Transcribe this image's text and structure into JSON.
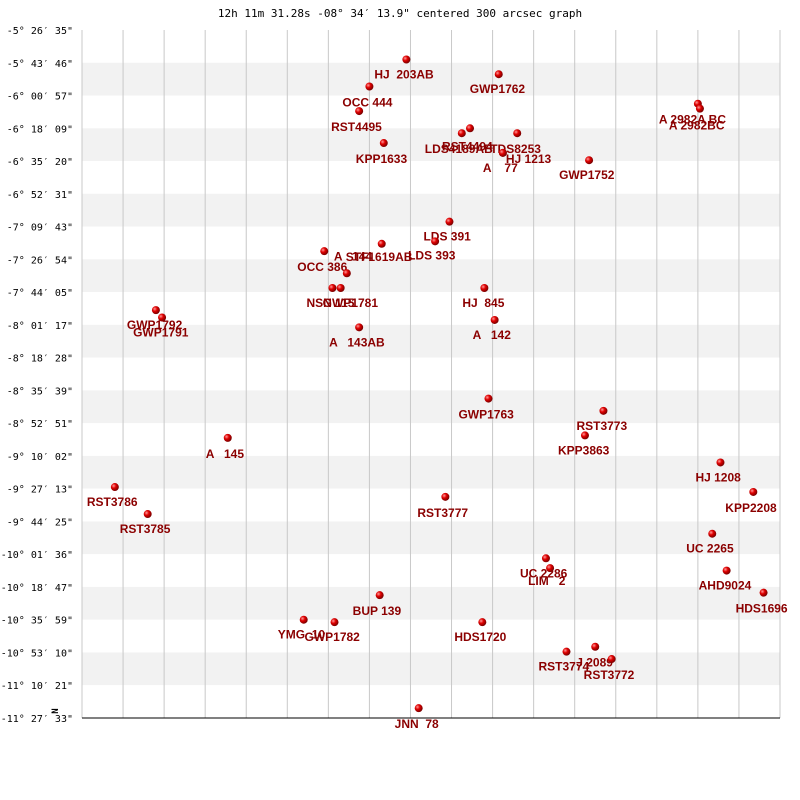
{
  "chart_data": {
    "type": "scatter",
    "title": "12h 11m 31.28s -08° 34′ 13.9\" centered 300 arcsec graph",
    "north_marker": "N",
    "xlim": [
      -17,
      17
    ],
    "ylim": [
      -28,
      0
    ],
    "y_ticks": [
      "-5° 26′ 35\"",
      "-5° 43′ 46\"",
      "-6° 00′ 57\"",
      "-6° 18′ 09\"",
      "-6° 35′ 20\"",
      "-6° 52′ 31\"",
      "-7° 09′ 43\"",
      "-7° 26′ 54\"",
      "-7° 44′ 05\"",
      "-8° 01′ 17\"",
      "-8° 18′ 28\"",
      "-8° 35′ 39\"",
      "-8° 52′ 51\"",
      "-9° 10′ 02\"",
      "-9° 27′ 13\"",
      "-9° 44′ 25\"",
      "-10° 01′ 36\"",
      "-10° 18′ 47\"",
      "-10° 35′ 59\"",
      "-10° 53′ 10\"",
      "-11° 10′ 21\"",
      "-11° 27′ 33\""
    ],
    "stars": [
      {
        "label": "HJ  203AB",
        "x": -1.2,
        "y": -1.2,
        "dx": -32,
        "dy": 19
      },
      {
        "label": "GWP1762",
        "x": 3.3,
        "y": -1.8,
        "dx": -29,
        "dy": 19
      },
      {
        "label": "OCC 444",
        "x": -3.0,
        "y": -2.3,
        "dx": -27,
        "dy": 20
      },
      {
        "label": "A 2982A BC",
        "x": 13.0,
        "y": -3.0,
        "dx": -39,
        "dy": 20
      },
      {
        "label": "A 2982BC",
        "x": 13.1,
        "y": -3.2,
        "dx": -31,
        "dy": 21
      },
      {
        "label": "RST4495",
        "x": -3.5,
        "y": -3.3,
        "dx": -28,
        "dy": 20
      },
      {
        "label": "RST4494",
        "x": 1.9,
        "y": -4.0,
        "dx": -28,
        "dy": 22
      },
      {
        "label": "LDS4189AB",
        "x": 1.5,
        "y": -4.2,
        "dx": -37,
        "dy": 20
      },
      {
        "label": "TDS8253",
        "x": 4.2,
        "y": -4.2,
        "dx": -27,
        "dy": 20
      },
      {
        "label": "KPP1633",
        "x": -2.3,
        "y": -4.6,
        "dx": -28,
        "dy": 20
      },
      {
        "label": "HJ 1213",
        "x": 3.5,
        "y": -5.0,
        "dx": 3,
        "dy": 10
      },
      {
        "label": "A    77",
        "x": 3.5,
        "y": -5.0,
        "dx": -20,
        "dy": 19
      },
      {
        "label": "GWP1752",
        "x": 7.7,
        "y": -5.3,
        "dx": -30,
        "dy": 19
      },
      {
        "label": "LDS 391",
        "x": 0.9,
        "y": -7.8,
        "dx": -26,
        "dy": 19
      },
      {
        "label": "OCC 386",
        "x": -5.2,
        "y": -9.0,
        "dx": -27,
        "dy": 20
      },
      {
        "label": "STF1619AB",
        "x": -2.4,
        "y": -8.7,
        "dx": -36,
        "dy": 17
      },
      {
        "label": "LDS 393",
        "x": 0.2,
        "y": -8.6,
        "dx": -27,
        "dy": 18
      },
      {
        "label": "A   144",
        "x": -4.1,
        "y": -9.9,
        "dx": -13,
        "dy": -13
      },
      {
        "label": "NSN 115",
        "x": -4.8,
        "y": -10.5,
        "dx": -26,
        "dy": 19
      },
      {
        "label": "GWP1781",
        "x": -4.4,
        "y": -10.5,
        "dx": -18,
        "dy": 19
      },
      {
        "label": "HJ  845",
        "x": 2.6,
        "y": -10.5,
        "dx": -22,
        "dy": 19
      },
      {
        "label": "GWP1792",
        "x": -13.4,
        "y": -11.4,
        "dx": -29,
        "dy": 19
      },
      {
        "label": "GWP1791",
        "x": -13.1,
        "y": -11.7,
        "dx": -29,
        "dy": 19
      },
      {
        "label": "A   142",
        "x": 3.1,
        "y": -11.8,
        "dx": -22,
        "dy": 19
      },
      {
        "label": "A   143AB",
        "x": -3.5,
        "y": -12.1,
        "dx": -30,
        "dy": 19
      },
      {
        "label": "GWP1763",
        "x": 2.8,
        "y": -15.0,
        "dx": -30,
        "dy": 20
      },
      {
        "label": "RST3773",
        "x": 8.4,
        "y": -15.5,
        "dx": -27,
        "dy": 19
      },
      {
        "label": "KPP3863",
        "x": 7.5,
        "y": -16.5,
        "dx": -27,
        "dy": 19
      },
      {
        "label": "A   145",
        "x": -9.9,
        "y": -16.6,
        "dx": -22,
        "dy": 20
      },
      {
        "label": "HJ 1208",
        "x": 14.1,
        "y": -17.6,
        "dx": -25,
        "dy": 19
      },
      {
        "label": "RST3786",
        "x": -15.4,
        "y": -18.6,
        "dx": -28,
        "dy": 19
      },
      {
        "label": "KPP2208",
        "x": 15.7,
        "y": -18.8,
        "dx": -28,
        "dy": 20
      },
      {
        "label": "RST3777",
        "x": 0.7,
        "y": -19.0,
        "dx": -28,
        "dy": 20
      },
      {
        "label": "RST3785",
        "x": -13.8,
        "y": -19.7,
        "dx": -28,
        "dy": 19
      },
      {
        "label": "UC 2265",
        "x": 13.7,
        "y": -20.5,
        "dx": -26,
        "dy": 19
      },
      {
        "label": "UC 2286",
        "x": 5.6,
        "y": -21.5,
        "dx": -26,
        "dy": 19
      },
      {
        "label": "LIM   2",
        "x": 5.8,
        "y": -21.9,
        "dx": -22,
        "dy": 17
      },
      {
        "label": "AHD9024",
        "x": 14.4,
        "y": -22.0,
        "dx": -28,
        "dy": 19
      },
      {
        "label": "HDS1696",
        "x": 16.2,
        "y": -22.9,
        "dx": -28,
        "dy": 20
      },
      {
        "label": "BUP 139",
        "x": -2.5,
        "y": -23.0,
        "dx": -27,
        "dy": 20
      },
      {
        "label": "YMG  10",
        "x": -6.2,
        "y": -24.0,
        "dx": -26,
        "dy": 19
      },
      {
        "label": "GWP1782",
        "x": -4.7,
        "y": -24.1,
        "dx": -30,
        "dy": 19
      },
      {
        "label": "HDS1720",
        "x": 2.5,
        "y": -24.1,
        "dx": -28,
        "dy": 19
      },
      {
        "label": "J 2089",
        "x": 8.0,
        "y": -25.1,
        "dx": -19,
        "dy": 20
      },
      {
        "label": "RST3774",
        "x": 6.6,
        "y": -25.3,
        "dx": -28,
        "dy": 19
      },
      {
        "label": "RST3772",
        "x": 8.8,
        "y": -25.6,
        "dx": -28,
        "dy": 20
      },
      {
        "label": "JNN  78",
        "x": -0.6,
        "y": -27.6,
        "dx": -24,
        "dy": 20
      }
    ]
  }
}
